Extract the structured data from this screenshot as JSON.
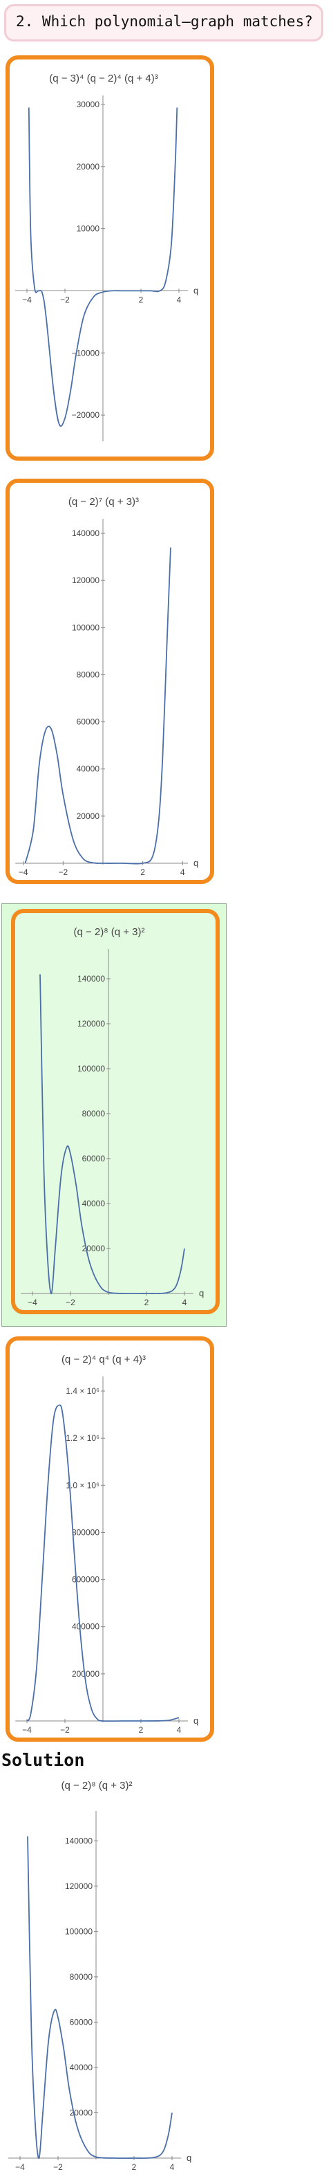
{
  "question": {
    "text": "2. Which polynomial–graph matches?"
  },
  "solution": {
    "heading": "Solution"
  },
  "options": [
    {
      "title": "(q − 3)⁴ (q − 2)⁴ (q + 4)³",
      "correct": false,
      "chart_data": {
        "type": "line",
        "title": "(q − 3)⁴ (q − 2)⁴ (q + 4)³",
        "xlabel": "q",
        "ylabel": "",
        "xlim": [
          -4.4,
          4.4
        ],
        "ylim": [
          -24000,
          31000
        ],
        "x_ticks": [
          -4,
          -2,
          2,
          4
        ],
        "x_tick_labels": [
          "−4",
          "−2",
          "2",
          "4"
        ],
        "y_ticks": [
          -20000,
          -10000,
          10000,
          20000,
          30000
        ],
        "y_tick_labels": [
          "−20000",
          "−10000",
          "10000",
          "20000",
          "30000"
        ],
        "series": [
          {
            "x": [
              -3.9,
              -3.8,
              -3.6,
              -3.4,
              -3.2,
              -3.0,
              -2.6,
              -2.3,
              -2.0,
              -1.7,
              -1.4,
              -1.0,
              -0.5,
              0.0,
              0.5,
              1.0,
              2.0,
              2.5,
              3.0,
              3.3,
              3.6,
              3.8,
              3.9
            ],
            "y": [
              29500,
              9000,
              500,
              0,
              -300,
              -4000,
              -16000,
              -21500,
              -20500,
              -16000,
              -10000,
              -4000,
              -1000,
              -200,
              0,
              0,
              0,
              0,
              0,
              1500,
              7500,
              20000,
              29500
            ]
          }
        ]
      }
    },
    {
      "title": "(q − 2)⁷ (q + 3)³",
      "correct": false,
      "chart_data": {
        "type": "line",
        "title": "(q − 2)⁷ (q + 3)³",
        "xlabel": "q",
        "ylabel": "",
        "xlim": [
          -4.2,
          4.2
        ],
        "ylim": [
          0,
          145000
        ],
        "x_ticks": [
          -4,
          -2,
          2,
          4
        ],
        "x_tick_labels": [
          "−4",
          "−2",
          "2",
          "4"
        ],
        "y_ticks": [
          20000,
          40000,
          60000,
          80000,
          100000,
          120000,
          140000
        ],
        "y_tick_labels": [
          "20000",
          "40000",
          "60000",
          "80000",
          "100000",
          "120000",
          "140000"
        ],
        "series": [
          {
            "x": [
              -3.9,
              -3.5,
              -3.2,
              -2.9,
              -2.6,
              -2.3,
              -2.0,
              -1.5,
              -1.0,
              -0.5,
              0.0,
              1.0,
              2.0,
              2.5,
              2.8,
              3.0,
              3.2,
              3.4
            ],
            "y": [
              0,
              14000,
              42000,
              56000,
              57000,
              46000,
              29000,
              10000,
              2000,
              200,
              0,
              0,
              0,
              3000,
              18000,
              45000,
              90000,
              134000
            ]
          }
        ]
      }
    },
    {
      "title": "(q − 2)⁸ (q + 3)²",
      "correct": true,
      "chart_data": {
        "type": "line",
        "title": "(q − 2)⁸ (q + 3)²",
        "xlabel": "q",
        "ylabel": "",
        "xlim": [
          -4.4,
          4.4
        ],
        "ylim": [
          0,
          152000
        ],
        "x_ticks": [
          -4,
          -2,
          2,
          4
        ],
        "x_tick_labels": [
          "−4",
          "−2",
          "2",
          "4"
        ],
        "y_ticks": [
          20000,
          40000,
          60000,
          80000,
          100000,
          120000,
          140000
        ],
        "y_tick_labels": [
          "20000",
          "40000",
          "60000",
          "80000",
          "100000",
          "120000",
          "140000"
        ],
        "series": [
          {
            "x": [
              -3.6,
              -3.4,
              -3.2,
              -3.0,
              -2.8,
              -2.5,
              -2.2,
              -2.0,
              -1.7,
              -1.4,
              -1.0,
              -0.5,
              0.0,
              1.0,
              2.0,
              3.0,
              3.5,
              3.8,
              4.0
            ],
            "y": [
              142000,
              55000,
              15000,
              0,
              20000,
              52000,
              65000,
              62000,
              48000,
              30000,
              14000,
              4000,
              500,
              0,
              0,
              200,
              2500,
              10000,
              20000
            ]
          }
        ]
      }
    },
    {
      "title": "(q − 2)⁴ q⁴ (q + 4)³",
      "correct": false,
      "chart_data": {
        "type": "line",
        "title": "(q − 2)⁴ q⁴ (q + 4)³",
        "xlabel": "q",
        "ylabel": "",
        "xlim": [
          -4.4,
          4.4
        ],
        "ylim": [
          0,
          1450000
        ],
        "x_ticks": [
          -4,
          -2,
          2,
          4
        ],
        "x_tick_labels": [
          "−4",
          "−2",
          "2",
          "4"
        ],
        "y_ticks": [
          200000,
          400000,
          600000,
          800000,
          1000000,
          1200000,
          1400000
        ],
        "y_tick_labels": [
          "200000",
          "400000",
          "600000",
          "800000",
          "1.0 × 10⁶",
          "1.2 × 10⁶",
          "1.4 × 10⁶"
        ],
        "series": [
          {
            "x": [
              -4.0,
              -3.8,
              -3.5,
              -3.2,
              -2.9,
              -2.6,
              -2.3,
              -2.1,
              -1.8,
              -1.5,
              -1.2,
              -0.9,
              -0.6,
              -0.3,
              0.0,
              1.0,
              2.0,
              3.0,
              3.5,
              4.0
            ],
            "y": [
              0,
              30000,
              220000,
              600000,
              1000000,
              1280000,
              1340000,
              1290000,
              1050000,
              700000,
              380000,
              160000,
              50000,
              8000,
              0,
              0,
              0,
              500,
              3000,
              14000
            ]
          }
        ]
      }
    }
  ],
  "solution_chart": {
    "chart_data": {
      "type": "line",
      "title": "(q − 2)⁸ (q + 3)²",
      "xlabel": "q",
      "ylabel": "",
      "xlim": [
        -4.4,
        4.4
      ],
      "ylim": [
        0,
        152000
      ],
      "x_ticks": [
        -4,
        -2,
        2,
        4
      ],
      "x_tick_labels": [
        "−4",
        "−2",
        "2",
        "4"
      ],
      "y_ticks": [
        20000,
        40000,
        60000,
        80000,
        100000,
        120000,
        140000
      ],
      "y_tick_labels": [
        "20000",
        "40000",
        "60000",
        "80000",
        "100000",
        "120000",
        "140000"
      ],
      "series": [
        {
          "x": [
            -3.6,
            -3.4,
            -3.2,
            -3.0,
            -2.8,
            -2.5,
            -2.2,
            -2.0,
            -1.7,
            -1.4,
            -1.0,
            -0.5,
            0.0,
            1.0,
            2.0,
            3.0,
            3.5,
            3.8,
            4.0
          ],
          "y": [
            142000,
            55000,
            15000,
            0,
            20000,
            52000,
            65000,
            62000,
            48000,
            30000,
            14000,
            4000,
            500,
            0,
            0,
            200,
            2500,
            10000,
            20000
          ]
        }
      ]
    }
  },
  "colors": {
    "accent": "#f28a1e",
    "curve": "#4b6fa9",
    "correct_bg": "#e3fbe1",
    "question_bg": "#fdf1f3"
  }
}
